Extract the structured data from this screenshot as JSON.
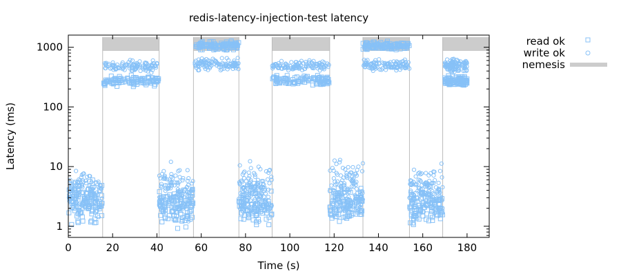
{
  "chart_data": {
    "type": "scatter",
    "title": "redis-latency-injection-test latency",
    "xlabel": "Time (s)",
    "ylabel": "Latency (ms)",
    "xlim": [
      0,
      190
    ],
    "ylim": [
      0.65,
      1600
    ],
    "yscale": "log",
    "x_ticks": [
      0,
      20,
      40,
      60,
      80,
      100,
      120,
      140,
      160,
      180
    ],
    "y_ticks": [
      1,
      10,
      100,
      1000
    ],
    "grid": false,
    "legend_position": "outside-right",
    "colors": {
      "points": "#87c1f7",
      "nemesis": "#cccccc",
      "nemesis_edge": "#bbbbbb"
    },
    "nemesis_intervals": [
      {
        "start": 15.5,
        "end": 41.0
      },
      {
        "start": 56.5,
        "end": 77.0
      },
      {
        "start": 92.0,
        "end": 118.0
      },
      {
        "start": 133.0,
        "end": 154.0
      },
      {
        "start": 169.0,
        "end": 190.0
      }
    ],
    "series": [
      {
        "name": "read ok",
        "marker": "square",
        "clusters": [
          {
            "x": [
              0,
              15.5
            ],
            "y": [
              0.8,
              8
            ]
          },
          {
            "x": [
              16,
              41
            ],
            "y": [
              210,
              360
            ]
          },
          {
            "x": [
              41,
              56.5
            ],
            "y": [
              0.8,
              6
            ]
          },
          {
            "x": [
              57,
              77
            ],
            "y": [
              850,
              1350
            ]
          },
          {
            "x": [
              77,
              92
            ],
            "y": [
              0.8,
              6
            ]
          },
          {
            "x": [
              92,
              118
            ],
            "y": [
              210,
              360
            ]
          },
          {
            "x": [
              118,
              133
            ],
            "y": [
              0.8,
              6
            ]
          },
          {
            "x": [
              133,
              154
            ],
            "y": [
              850,
              1300
            ]
          },
          {
            "x": [
              154,
              169
            ],
            "y": [
              0.8,
              6
            ]
          },
          {
            "x": [
              170,
              180
            ],
            "y": [
              210,
              360
            ]
          }
        ]
      },
      {
        "name": "write ok",
        "marker": "circle",
        "clusters": [
          {
            "x": [
              0,
              15.5
            ],
            "y": [
              1.0,
              12
            ]
          },
          {
            "x": [
              16,
              41
            ],
            "y": [
              350,
              650
            ]
          },
          {
            "x": [
              41,
              56.5
            ],
            "y": [
              1.0,
              17
            ]
          },
          {
            "x": [
              57,
              77
            ],
            "y": [
              380,
              700
            ]
          },
          {
            "x": [
              77,
              92
            ],
            "y": [
              1.0,
              18
            ]
          },
          {
            "x": [
              92,
              118
            ],
            "y": [
              380,
              650
            ]
          },
          {
            "x": [
              118,
              133
            ],
            "y": [
              1.0,
              20
            ]
          },
          {
            "x": [
              133,
              154
            ],
            "y": [
              380,
              650
            ]
          },
          {
            "x": [
              154,
              169
            ],
            "y": [
              1.0,
              15
            ]
          },
          {
            "x": [
              170,
              180
            ],
            "y": [
              350,
              700
            ]
          }
        ]
      }
    ],
    "legend": [
      {
        "label": "read ok",
        "marker": "square"
      },
      {
        "label": "write ok",
        "marker": "circle"
      },
      {
        "label": "nemesis",
        "marker": "bar"
      }
    ]
  }
}
